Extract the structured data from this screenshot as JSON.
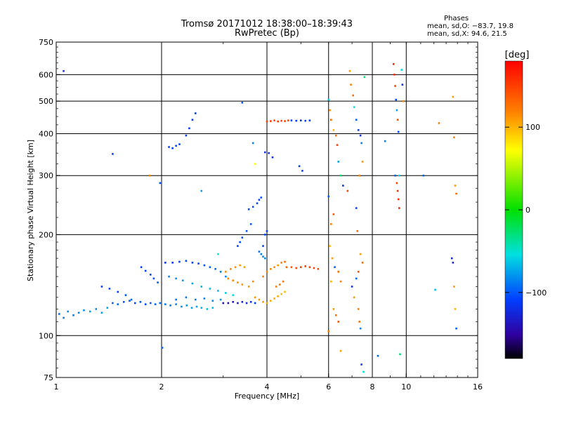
{
  "title_line1": "Tromsø 20171012 18:38:00–18:39:43",
  "title_line2": "RwPretec (Bp)",
  "phases": {
    "header": "Phases",
    "o_line": "mean, sd,O: −83.7, 19.8",
    "x_line": "mean, sd,X:  94.6, 21.5"
  },
  "colorbar": {
    "label": "[deg]",
    "ticks": [
      {
        "value": 100,
        "label": "100"
      },
      {
        "value": 0,
        "label": "0"
      },
      {
        "value": -100,
        "label": "−100"
      }
    ],
    "range": [
      -180,
      180
    ]
  },
  "chart_data": {
    "type": "scatter",
    "xlabel": "Frequency [MHz]",
    "ylabel": "Stationary phase Virtual Height [km]",
    "x_scale": "log",
    "y_scale": "log",
    "xlim": [
      1,
      16
    ],
    "ylim": [
      75,
      750
    ],
    "x_ticks": [
      {
        "value": 1,
        "label": "1"
      },
      {
        "value": 2,
        "label": "2"
      },
      {
        "value": 4,
        "label": "4"
      },
      {
        "value": 6,
        "label": "6"
      },
      {
        "value": 8,
        "label": "8"
      },
      {
        "value": 10,
        "label": "10"
      },
      {
        "value": 16,
        "label": "16"
      }
    ],
    "y_ticks": [
      {
        "value": 75,
        "label": "75"
      },
      {
        "value": 100,
        "label": "100"
      },
      {
        "value": 200,
        "label": "200"
      },
      {
        "value": 300,
        "label": "300"
      },
      {
        "value": 400,
        "label": "400"
      },
      {
        "value": 500,
        "label": "500"
      },
      {
        "value": 600,
        "label": "600"
      },
      {
        "value": 750,
        "label": "750"
      }
    ],
    "grid_x": [
      2,
      4,
      6,
      8,
      10
    ],
    "grid_y": [
      100,
      200,
      300,
      400,
      500,
      600
    ],
    "color_by": "phase [deg]",
    "points": [
      [
        1.02,
        116,
        -95
      ],
      [
        1.05,
        113,
        -90
      ],
      [
        1.08,
        118,
        -85
      ],
      [
        1.12,
        115,
        -92
      ],
      [
        1.16,
        117,
        -88
      ],
      [
        1.2,
        119,
        -84
      ],
      [
        1.25,
        118,
        -80
      ],
      [
        1.3,
        120,
        -86
      ],
      [
        1.35,
        117,
        -82
      ],
      [
        1.4,
        121,
        -78
      ],
      [
        1.45,
        125,
        -100
      ],
      [
        1.5,
        124,
        -96
      ],
      [
        1.56,
        126,
        -105
      ],
      [
        1.62,
        127,
        -102
      ],
      [
        1.68,
        125,
        -108
      ],
      [
        1.74,
        126,
        -104
      ],
      [
        1.8,
        124,
        -110
      ],
      [
        1.86,
        125,
        -100
      ],
      [
        1.92,
        124,
        -98
      ],
      [
        1.98,
        125,
        -95
      ],
      [
        2.05,
        124,
        -92
      ],
      [
        2.12,
        123,
        -90
      ],
      [
        2.2,
        124,
        -88
      ],
      [
        2.28,
        122,
        -85
      ],
      [
        2.36,
        123,
        -82
      ],
      [
        2.44,
        121,
        -80
      ],
      [
        2.52,
        122,
        -78
      ],
      [
        2.6,
        121,
        -75
      ],
      [
        2.7,
        120,
        -72
      ],
      [
        2.8,
        121,
        -70
      ],
      [
        1.35,
        140,
        -110
      ],
      [
        1.42,
        138,
        -108
      ],
      [
        1.5,
        135,
        -112
      ],
      [
        1.58,
        132,
        -105
      ],
      [
        1.64,
        128,
        -100
      ],
      [
        1.75,
        160,
        -112
      ],
      [
        1.8,
        156,
        -110
      ],
      [
        1.86,
        152,
        -106
      ],
      [
        1.9,
        148,
        -104
      ],
      [
        1.95,
        144,
        -100
      ],
      [
        2.05,
        165,
        -118
      ],
      [
        2.15,
        165,
        -116
      ],
      [
        2.25,
        166,
        -114
      ],
      [
        2.35,
        167,
        -112
      ],
      [
        2.45,
        165,
        -110
      ],
      [
        2.55,
        164,
        -108
      ],
      [
        2.65,
        162,
        -105
      ],
      [
        2.75,
        160,
        -100
      ],
      [
        2.85,
        158,
        -95
      ],
      [
        2.95,
        155,
        -92
      ],
      [
        3.05,
        150,
        -88
      ],
      [
        2.1,
        150,
        -90
      ],
      [
        2.2,
        148,
        -85
      ],
      [
        2.3,
        146,
        -82
      ],
      [
        2.45,
        143,
        -78
      ],
      [
        2.6,
        140,
        -75
      ],
      [
        2.75,
        138,
        -72
      ],
      [
        2.9,
        136,
        -70
      ],
      [
        3.05,
        134,
        -66
      ],
      [
        3.2,
        132,
        -62
      ],
      [
        3.0,
        125,
        -140
      ],
      [
        3.1,
        125,
        -136
      ],
      [
        3.2,
        126,
        -134
      ],
      [
        3.3,
        125,
        -130
      ],
      [
        3.4,
        126,
        -126
      ],
      [
        3.5,
        125,
        -122
      ],
      [
        3.6,
        126,
        -118
      ],
      [
        3.7,
        125,
        -115
      ],
      [
        2.2,
        128,
        -95
      ],
      [
        2.35,
        130,
        -92
      ],
      [
        2.5,
        128,
        -90
      ],
      [
        2.65,
        129,
        -88
      ],
      [
        2.8,
        127,
        -86
      ],
      [
        2.95,
        128,
        -84
      ],
      [
        3.05,
        155,
        115
      ],
      [
        3.15,
        158,
        118
      ],
      [
        3.25,
        160,
        112
      ],
      [
        3.35,
        162,
        110
      ],
      [
        3.45,
        160,
        108
      ],
      [
        3.1,
        148,
        120
      ],
      [
        3.2,
        146,
        117
      ],
      [
        3.3,
        144,
        114
      ],
      [
        3.4,
        142,
        112
      ],
      [
        3.55,
        140,
        110
      ],
      [
        3.65,
        145,
        116
      ],
      [
        3.7,
        130,
        112
      ],
      [
        3.8,
        128,
        110
      ],
      [
        3.9,
        126,
        108
      ],
      [
        4.0,
        125,
        106
      ],
      [
        4.1,
        127,
        104
      ],
      [
        4.2,
        129,
        102
      ],
      [
        4.3,
        131,
        100
      ],
      [
        4.4,
        133,
        98
      ],
      [
        4.5,
        135,
        96
      ],
      [
        3.9,
        150,
        120
      ],
      [
        4.0,
        155,
        118
      ],
      [
        4.1,
        158,
        116
      ],
      [
        4.2,
        160,
        114
      ],
      [
        4.3,
        162,
        112
      ],
      [
        4.4,
        165,
        120
      ],
      [
        4.5,
        166,
        130
      ],
      [
        4.45,
        145,
        126
      ],
      [
        4.35,
        142,
        124
      ],
      [
        4.25,
        140,
        122
      ],
      [
        4.55,
        160,
        135
      ],
      [
        4.7,
        160,
        140
      ],
      [
        4.85,
        159,
        145
      ],
      [
        5.0,
        160,
        150
      ],
      [
        5.15,
        161,
        152
      ],
      [
        5.3,
        160,
        150
      ],
      [
        5.45,
        159,
        148
      ],
      [
        5.6,
        158,
        146
      ],
      [
        3.3,
        185,
        -110
      ],
      [
        3.35,
        190,
        -108
      ],
      [
        3.4,
        196,
        -106
      ],
      [
        3.5,
        205,
        -104
      ],
      [
        3.6,
        215,
        -102
      ],
      [
        3.55,
        238,
        -104
      ],
      [
        3.65,
        242,
        -106
      ],
      [
        3.75,
        248,
        -108
      ],
      [
        3.8,
        254,
        -110
      ],
      [
        3.85,
        258,
        -105
      ],
      [
        3.8,
        178,
        -95
      ],
      [
        3.85,
        175,
        -90
      ],
      [
        3.9,
        172,
        -88
      ],
      [
        3.95,
        170,
        -86
      ],
      [
        3.9,
        185,
        -110
      ],
      [
        3.95,
        200,
        -108
      ],
      [
        4.0,
        205,
        -112
      ],
      [
        2.1,
        365,
        -110
      ],
      [
        2.15,
        362,
        -112
      ],
      [
        2.2,
        368,
        -108
      ],
      [
        2.25,
        372,
        -110
      ],
      [
        2.35,
        395,
        -112
      ],
      [
        2.4,
        415,
        -115
      ],
      [
        2.45,
        440,
        -112
      ],
      [
        2.5,
        460,
        -110
      ],
      [
        4.0,
        435,
        150
      ],
      [
        4.1,
        436,
        152
      ],
      [
        4.2,
        438,
        150
      ],
      [
        4.3,
        435,
        154
      ],
      [
        4.4,
        437,
        150
      ],
      [
        4.5,
        436,
        148
      ],
      [
        4.6,
        438,
        146
      ],
      [
        4.7,
        438,
        -110
      ],
      [
        4.85,
        437,
        -112
      ],
      [
        5.0,
        438,
        -115
      ],
      [
        5.15,
        437,
        -108
      ],
      [
        5.3,
        438,
        -110
      ],
      [
        3.95,
        352,
        -120
      ],
      [
        4.05,
        350,
        -118
      ],
      [
        4.15,
        340,
        -116
      ],
      [
        4.95,
        320,
        -112
      ],
      [
        5.05,
        310,
        -110
      ],
      [
        1.05,
        615,
        -115
      ],
      [
        1.45,
        348,
        -110
      ],
      [
        1.98,
        285,
        -105
      ],
      [
        2.01,
        92,
        -100
      ],
      [
        1.85,
        300,
        120
      ],
      [
        3.4,
        495,
        -100
      ],
      [
        3.7,
        325,
        70
      ],
      [
        3.65,
        375,
        -90
      ],
      [
        2.6,
        270,
        -80
      ],
      [
        2.9,
        175,
        -60
      ],
      [
        6.0,
        505,
        -60
      ],
      [
        6.05,
        470,
        120
      ],
      [
        6.1,
        440,
        130
      ],
      [
        6.2,
        410,
        100
      ],
      [
        6.3,
        395,
        130
      ],
      [
        6.35,
        370,
        150
      ],
      [
        6.4,
        330,
        -80
      ],
      [
        6.5,
        300,
        -30
      ],
      [
        6.6,
        280,
        -120
      ],
      [
        6.8,
        270,
        150
      ],
      [
        6.2,
        230,
        140
      ],
      [
        6.1,
        215,
        120
      ],
      [
        6.0,
        260,
        -100
      ],
      [
        6.05,
        185,
        100
      ],
      [
        6.15,
        170,
        110
      ],
      [
        6.25,
        160,
        -100
      ],
      [
        6.4,
        155,
        130
      ],
      [
        6.5,
        145,
        120
      ],
      [
        6.1,
        145,
        100
      ],
      [
        6.2,
        120,
        110
      ],
      [
        6.3,
        115,
        130
      ],
      [
        6.4,
        110,
        140
      ],
      [
        6.0,
        103,
        120
      ],
      [
        6.5,
        90,
        110
      ],
      [
        6.9,
        615,
        110
      ],
      [
        6.95,
        560,
        120
      ],
      [
        7.05,
        520,
        130
      ],
      [
        7.1,
        480,
        -60
      ],
      [
        7.2,
        440,
        -100
      ],
      [
        7.3,
        410,
        -110
      ],
      [
        7.4,
        395,
        -120
      ],
      [
        7.45,
        375,
        -90
      ],
      [
        7.5,
        330,
        110
      ],
      [
        7.35,
        300,
        120
      ],
      [
        7.2,
        240,
        -110
      ],
      [
        7.25,
        205,
        130
      ],
      [
        7.4,
        175,
        110
      ],
      [
        7.5,
        165,
        130
      ],
      [
        7.3,
        155,
        140
      ],
      [
        7.2,
        148,
        -100
      ],
      [
        7.0,
        140,
        -120
      ],
      [
        7.1,
        130,
        110
      ],
      [
        7.3,
        120,
        120
      ],
      [
        7.35,
        110,
        130
      ],
      [
        7.4,
        105,
        -90
      ],
      [
        7.45,
        82,
        -110
      ],
      [
        7.55,
        78,
        -60
      ],
      [
        7.6,
        590,
        -30
      ],
      [
        8.3,
        87,
        -100
      ],
      [
        8.7,
        380,
        -90
      ],
      [
        9.2,
        645,
        160
      ],
      [
        9.25,
        600,
        160
      ],
      [
        9.3,
        555,
        150
      ],
      [
        9.35,
        505,
        -110
      ],
      [
        9.4,
        470,
        -80
      ],
      [
        9.45,
        440,
        140
      ],
      [
        9.5,
        405,
        -110
      ],
      [
        9.55,
        300,
        -60
      ],
      [
        9.4,
        285,
        150
      ],
      [
        9.45,
        270,
        155
      ],
      [
        9.5,
        255,
        160
      ],
      [
        9.55,
        240,
        162
      ],
      [
        9.6,
        88,
        -30
      ],
      [
        9.7,
        620,
        -60
      ],
      [
        9.75,
        560,
        -120
      ],
      [
        9.8,
        500,
        120
      ],
      [
        9.3,
        300,
        -100
      ],
      [
        11.2,
        300,
        -100
      ],
      [
        12.4,
        430,
        120
      ],
      [
        13.6,
        515,
        110
      ],
      [
        13.7,
        390,
        120
      ],
      [
        13.8,
        280,
        110
      ],
      [
        13.9,
        265,
        130
      ],
      [
        13.5,
        170,
        -120
      ],
      [
        13.6,
        165,
        -130
      ],
      [
        13.7,
        140,
        110
      ],
      [
        13.8,
        120,
        100
      ],
      [
        13.9,
        105,
        -100
      ],
      [
        12.1,
        137,
        -70
      ]
    ]
  }
}
